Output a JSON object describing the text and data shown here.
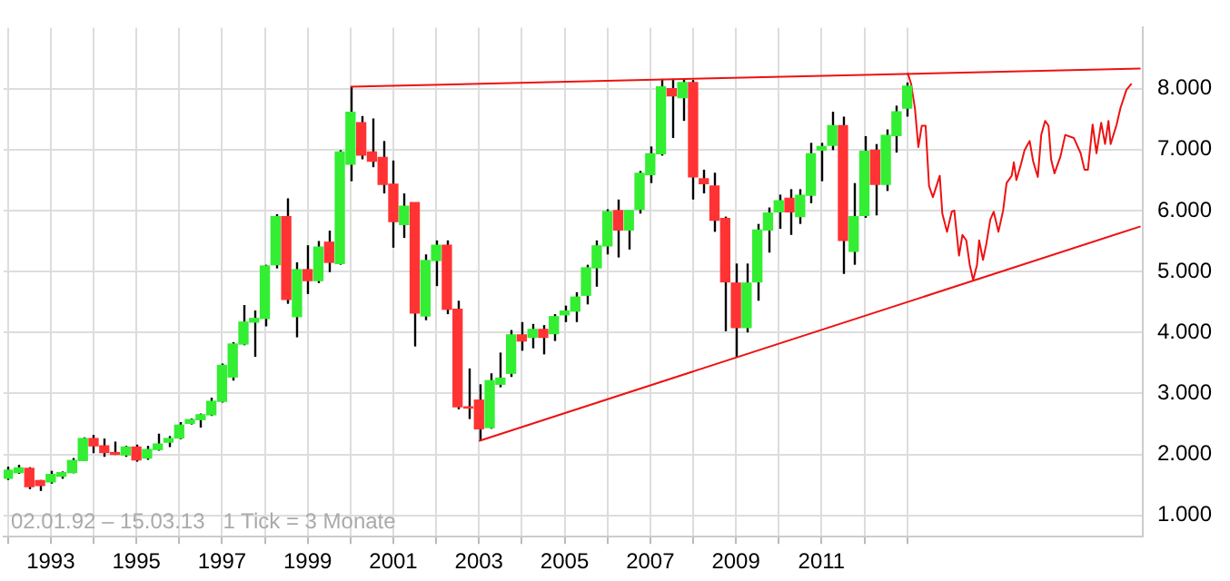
{
  "chart_data": {
    "type": "candlestick",
    "x": [
      1992,
      1992.25,
      1992.5,
      1992.75,
      1993,
      1993.25,
      1993.5,
      1993.75,
      1994,
      1994.25,
      1994.5,
      1994.75,
      1995,
      1995.25,
      1995.5,
      1995.75,
      1996,
      1996.25,
      1996.5,
      1996.75,
      1997,
      1997.25,
      1997.5,
      1997.75,
      1998,
      1998.25,
      1998.5,
      1998.75,
      1999,
      1999.25,
      1999.5,
      1999.75,
      2000,
      2000.25,
      2000.5,
      2000.75,
      2001,
      2001.25,
      2001.5,
      2001.75,
      2002,
      2002.25,
      2002.5,
      2002.75,
      2003,
      2003.25,
      2003.5,
      2003.75,
      2004,
      2004.25,
      2004.5,
      2004.75,
      2005,
      2005.25,
      2005.5,
      2005.75,
      2006,
      2006.25,
      2006.5,
      2006.75,
      2007,
      2007.25,
      2007.5,
      2007.75,
      2008,
      2008.25,
      2008.5,
      2008.75,
      2009,
      2009.25,
      2009.5,
      2009.75,
      2010,
      2010.25,
      2010.5,
      2010.75,
      2011,
      2011.25,
      2011.5,
      2011.75,
      2012,
      2012.25,
      2012.5,
      2012.75,
      2013
    ],
    "ohlc": [
      [
        1610,
        1800,
        1580,
        1740
      ],
      [
        1700,
        1830,
        1680,
        1780
      ],
      [
        1770,
        1790,
        1430,
        1470
      ],
      [
        1570,
        1580,
        1400,
        1490
      ],
      [
        1550,
        1730,
        1520,
        1670
      ],
      [
        1640,
        1720,
        1600,
        1700
      ],
      [
        1700,
        1940,
        1690,
        1900
      ],
      [
        1900,
        2280,
        1890,
        2260
      ],
      [
        2260,
        2320,
        2020,
        2140
      ],
      [
        2140,
        2260,
        1960,
        2030
      ],
      [
        2030,
        2210,
        1990,
        2000
      ],
      [
        1990,
        2140,
        1960,
        2120
      ],
      [
        2120,
        2160,
        1880,
        1910
      ],
      [
        1940,
        2140,
        1910,
        2080
      ],
      [
        2080,
        2340,
        2060,
        2170
      ],
      [
        2200,
        2300,
        2120,
        2260
      ],
      [
        2270,
        2530,
        2250,
        2480
      ],
      [
        2510,
        2590,
        2490,
        2570
      ],
      [
        2570,
        2670,
        2440,
        2650
      ],
      [
        2650,
        2930,
        2630,
        2870
      ],
      [
        2870,
        3490,
        2850,
        3460
      ],
      [
        3270,
        3840,
        3210,
        3810
      ],
      [
        3810,
        4450,
        3790,
        4170
      ],
      [
        4170,
        4360,
        3600,
        4230
      ],
      [
        4230,
        5110,
        4100,
        5090
      ],
      [
        5110,
        5940,
        5050,
        5900
      ],
      [
        5900,
        6200,
        4470,
        4540
      ],
      [
        4260,
        5150,
        3920,
        5030
      ],
      [
        5030,
        5430,
        4630,
        4850
      ],
      [
        4850,
        5500,
        4810,
        5400
      ],
      [
        5480,
        5670,
        4990,
        5150
      ],
      [
        5130,
        6990,
        5110,
        6960
      ],
      [
        6760,
        8030,
        6480,
        7610
      ],
      [
        7440,
        7550,
        6840,
        6910
      ],
      [
        6960,
        7510,
        6710,
        6810
      ],
      [
        6870,
        7140,
        6280,
        6430
      ],
      [
        6430,
        6820,
        5390,
        5820
      ],
      [
        5770,
        6280,
        5550,
        6070
      ],
      [
        6130,
        6130,
        3770,
        4320
      ],
      [
        4270,
        5280,
        4200,
        5180
      ],
      [
        5180,
        5510,
        4760,
        5430
      ],
      [
        5430,
        5510,
        4300,
        4380
      ],
      [
        4380,
        4520,
        2740,
        2780
      ],
      [
        2780,
        3410,
        2580,
        2760
      ],
      [
        2890,
        3150,
        2220,
        2420
      ],
      [
        2440,
        3330,
        2420,
        3210
      ],
      [
        3150,
        3670,
        3100,
        3250
      ],
      [
        3330,
        4040,
        3270,
        3960
      ],
      [
        3960,
        4170,
        3700,
        3860
      ],
      [
        3920,
        4140,
        3740,
        4050
      ],
      [
        4050,
        4120,
        3640,
        3920
      ],
      [
        3980,
        4300,
        3860,
        4260
      ],
      [
        4290,
        4440,
        4170,
        4350
      ],
      [
        4350,
        4660,
        4170,
        4580
      ],
      [
        4610,
        5110,
        4460,
        5060
      ],
      [
        5060,
        5510,
        4750,
        5420
      ],
      [
        5420,
        6020,
        5280,
        5980
      ],
      [
        6000,
        6180,
        5230,
        5680
      ],
      [
        5680,
        6000,
        5360,
        6000
      ],
      [
        6020,
        6650,
        5950,
        6610
      ],
      [
        6590,
        7050,
        6450,
        6930
      ],
      [
        6930,
        8160,
        6900,
        8030
      ],
      [
        8000,
        8160,
        7190,
        7880
      ],
      [
        7850,
        8160,
        7470,
        8100
      ],
      [
        8100,
        8140,
        6180,
        6550
      ],
      [
        6520,
        6670,
        6280,
        6440
      ],
      [
        6400,
        6620,
        5650,
        5840
      ],
      [
        5870,
        5900,
        4020,
        4830
      ],
      [
        4810,
        5130,
        3600,
        4080
      ],
      [
        4080,
        5130,
        4000,
        4810
      ],
      [
        4830,
        5780,
        4520,
        5680
      ],
      [
        5680,
        6050,
        5310,
        5960
      ],
      [
        5980,
        6260,
        5700,
        6160
      ],
      [
        6200,
        6350,
        5600,
        5980
      ],
      [
        5900,
        6350,
        5780,
        6250
      ],
      [
        6250,
        7110,
        6120,
        6930
      ],
      [
        6990,
        7110,
        6480,
        7050
      ],
      [
        7070,
        7620,
        6990,
        7390
      ],
      [
        7390,
        7540,
        4960,
        5510
      ],
      [
        5330,
        6450,
        5110,
        5900
      ],
      [
        5920,
        7220,
        5880,
        6970
      ],
      [
        6990,
        7090,
        5920,
        6430
      ],
      [
        6430,
        7330,
        6320,
        7230
      ],
      [
        7230,
        7720,
        6950,
        7620
      ],
      [
        7680,
        8100,
        7540,
        8040
      ]
    ],
    "colors": [
      "#33ee33",
      "#33ee33",
      "#ff3333",
      "#ff3333",
      "#33ee33",
      "#33ee33",
      "#33ee33",
      "#33ee33",
      "#ff3333",
      "#ff3333",
      "#ff3333",
      "#33ee33",
      "#ff3333",
      "#33ee33",
      "#33ee33",
      "#33ee33",
      "#33ee33",
      "#33ee33",
      "#33ee33",
      "#33ee33",
      "#33ee33",
      "#33ee33",
      "#33ee33",
      "#33ee33",
      "#33ee33",
      "#33ee33",
      "#ff3333",
      "#33ee33",
      "#ff3333",
      "#33ee33",
      "#ff3333",
      "#33ee33",
      "#33ee33",
      "#ff3333",
      "#ff3333",
      "#ff3333",
      "#ff3333",
      "#33ee33",
      "#ff3333",
      "#33ee33",
      "#33ee33",
      "#ff3333",
      "#ff3333",
      "#ff3333",
      "#ff3333",
      "#33ee33",
      "#33ee33",
      "#33ee33",
      "#ff3333",
      "#33ee33",
      "#ff3333",
      "#33ee33",
      "#33ee33",
      "#33ee33",
      "#33ee33",
      "#33ee33",
      "#33ee33",
      "#ff3333",
      "#33ee33",
      "#33ee33",
      "#33ee33",
      "#33ee33",
      "#ff3333",
      "#33ee33",
      "#ff3333",
      "#ff3333",
      "#ff3333",
      "#ff3333",
      "#ff3333",
      "#33ee33",
      "#33ee33",
      "#33ee33",
      "#33ee33",
      "#ff3333",
      "#33ee33",
      "#33ee33",
      "#33ee33",
      "#33ee33",
      "#ff3333",
      "#33ee33",
      "#33ee33",
      "#ff3333",
      "#33ee33",
      "#33ee33",
      "#33ee33"
    ],
    "series": [
      {
        "type": "line",
        "color": "#ee1111",
        "x": [
          2000,
          2018.45
        ],
        "values": [
          8030,
          8330
        ]
      },
      {
        "type": "line",
        "color": "#ee1111",
        "x": [
          2003,
          2018.45
        ],
        "values": [
          2220,
          5740
        ]
      },
      {
        "type": "line",
        "color": "#ee1111",
        "x": [
          2013.01,
          2013.09,
          2013.18,
          2013.26,
          2013.34,
          2013.43,
          2013.51,
          2013.6,
          2013.76,
          2013.82,
          2013.93,
          2014.04,
          2014.1,
          2014.21,
          2014.29,
          2014.38,
          2014.46,
          2014.54,
          2014.63,
          2014.68,
          2014.77,
          2014.85,
          2014.94,
          2015.02,
          2015.13,
          2015.24,
          2015.32,
          2015.44,
          2015.49,
          2015.55,
          2015.66,
          2015.74,
          2015.86,
          2015.94,
          2016.05,
          2016.13,
          2016.22,
          2016.3,
          2016.36,
          2016.44,
          2016.58,
          2016.69,
          2016.89,
          2017.05,
          2017.14,
          2017.22,
          2017.33,
          2017.42,
          2017.53,
          2017.62,
          2017.7,
          2017.75,
          2017.89,
          2017.98,
          2018.12,
          2018.24
        ],
        "values": [
          8260,
          8080,
          7680,
          7040,
          7390,
          7390,
          6400,
          6220,
          6570,
          5950,
          5650,
          5980,
          6000,
          5260,
          5600,
          5510,
          5110,
          4860,
          5110,
          5510,
          5190,
          5460,
          5850,
          5980,
          5650,
          6000,
          6450,
          6570,
          6790,
          6500,
          6770,
          6990,
          7140,
          6810,
          6550,
          7240,
          7470,
          7390,
          6840,
          6610,
          6890,
          7240,
          7190,
          6940,
          6670,
          6670,
          7410,
          6940,
          7440,
          7090,
          7470,
          7090,
          7410,
          7680,
          7980,
          8080
        ]
      }
    ],
    "xlim": [
      1991.9,
      2018.5
    ],
    "xticks": [
      {
        "value": 1992,
        "label": null
      },
      1993,
      {
        "value": 1994,
        "label": null
      },
      1995,
      {
        "value": 1996,
        "label": null
      },
      1997,
      {
        "value": 1998,
        "label": null
      },
      1999,
      {
        "value": 2000,
        "label": null
      },
      2001,
      {
        "value": 2002,
        "label": null
      },
      2003,
      {
        "value": 2004,
        "label": null
      },
      2005,
      {
        "value": 2006,
        "label": null
      },
      2007,
      {
        "value": 2008,
        "label": null
      },
      2009,
      {
        "value": 2010,
        "label": null
      },
      2011,
      {
        "value": 2012,
        "label": null
      },
      {
        "value": 2013,
        "label": null
      }
    ],
    "ylim": [
      650,
      9000
    ],
    "yticks": [
      {
        "value": 1000,
        "label": "1.000"
      },
      {
        "value": 2000,
        "label": "2.000"
      },
      {
        "value": 3000,
        "label": "3.000"
      },
      {
        "value": 4000,
        "label": "4.000"
      },
      {
        "value": 5000,
        "label": "5.000"
      },
      {
        "value": 6000,
        "label": "6.000"
      },
      {
        "value": 7000,
        "label": "7.000"
      },
      {
        "value": 8000,
        "label": "8.000"
      }
    ],
    "grid": true,
    "marker": "none",
    "annotations": [
      "02.01.92 – 15.03.13   1 Tick = 3 Monate"
    ]
  }
}
